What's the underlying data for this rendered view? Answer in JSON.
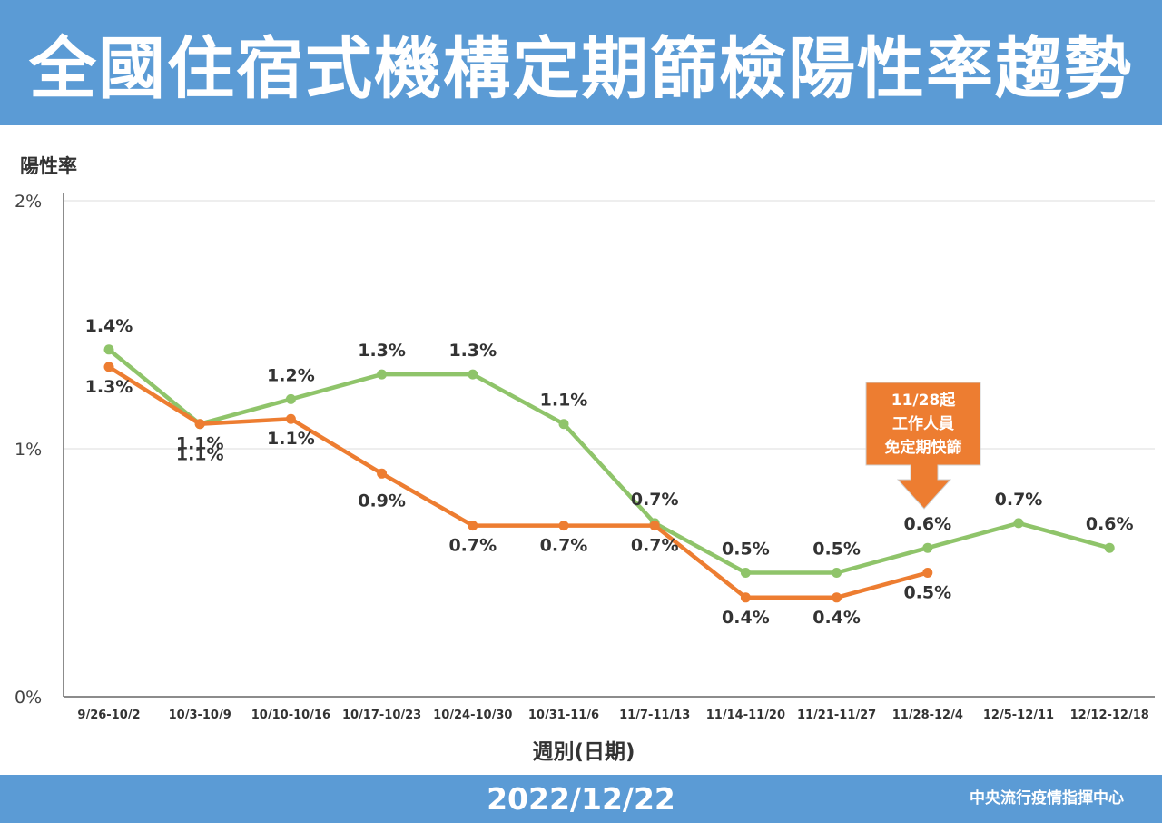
{
  "header": {
    "title": "全國住宿式機構定期篩檢陽性率趨勢"
  },
  "footer": {
    "date": "2022/12/22",
    "org": "中央流行疫情指揮中心"
  },
  "annotation": {
    "lines": [
      "11/28起",
      "工作人員",
      "免定期快篩"
    ],
    "color": "#ed7d31"
  },
  "chart_data": {
    "type": "line",
    "ylabel": "陽性率",
    "xlabel": "週別(日期)",
    "ylim": [
      0,
      2
    ],
    "yticks": [
      0,
      1,
      2
    ],
    "ytick_labels": [
      "0%",
      "1%",
      "2%"
    ],
    "grid": true,
    "categories": [
      "9/26-10/2",
      "10/3-10/9",
      "10/10-10/16",
      "10/17-10/23",
      "10/24-10/30",
      "10/31-11/6",
      "11/7-11/13",
      "11/14-11/20",
      "11/21-11/27",
      "11/28-12/4",
      "12/5-12/11",
      "12/12-12/18"
    ],
    "series": [
      {
        "color": "#8fc46a",
        "values": [
          1.4,
          1.1,
          1.2,
          1.3,
          1.3,
          1.1,
          0.7,
          0.5,
          0.5,
          0.6,
          0.7,
          0.6
        ],
        "labels": [
          "1.4%",
          "1.1%",
          "1.2%",
          "1.3%",
          "1.3%",
          "1.1%",
          "0.7%",
          "0.5%",
          "0.5%",
          "0.6%",
          "0.7%",
          "0.6%"
        ]
      },
      {
        "color": "#ed7d31",
        "values": [
          1.33,
          1.1,
          1.12,
          0.9,
          0.69,
          0.69,
          0.69,
          0.4,
          0.4,
          0.5,
          null,
          null
        ],
        "labels": [
          "1.3%",
          "1.1%",
          "1.1%",
          "0.9%",
          "0.7%",
          "0.7%",
          "0.7%",
          "0.4%",
          "0.4%",
          "0.5%",
          null,
          null
        ]
      }
    ]
  }
}
